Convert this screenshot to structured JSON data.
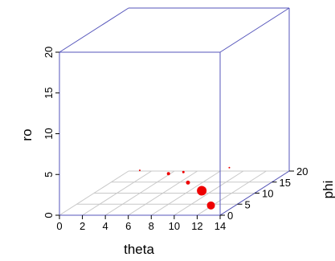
{
  "chart_data": {
    "type": "scatter",
    "subtype": "3d",
    "xlabel": "theta",
    "ylabel": "phi",
    "zlabel": "ro",
    "xlim": [
      0,
      14
    ],
    "ylim": [
      0,
      20
    ],
    "zlim": [
      0,
      20
    ],
    "x_ticks": [
      "0",
      "2",
      "4",
      "6",
      "8",
      "10",
      "12",
      "14"
    ],
    "y_ticks": [
      "0",
      "5",
      "10",
      "15",
      "20"
    ],
    "z_ticks": [
      "0",
      "5",
      "10",
      "15",
      "20"
    ],
    "grid": true,
    "point_color": "#ee0000",
    "points": [
      {
        "x": 7.0,
        "y": 0,
        "z": 5.5,
        "size": 1
      },
      {
        "x": 9.5,
        "y": 0,
        "z": 5.1,
        "size": 2
      },
      {
        "x": 10.8,
        "y": 0,
        "z": 5.3,
        "size": 1.5
      },
      {
        "x": 11.2,
        "y": 0,
        "z": 4.0,
        "size": 2.5
      },
      {
        "x": 12.4,
        "y": 0,
        "z": 3.0,
        "size": 6
      },
      {
        "x": 13.2,
        "y": 0,
        "z": 1.2,
        "size": 5
      },
      {
        "x": 14.2,
        "y": 2,
        "z": 5.3,
        "size": 1
      }
    ]
  },
  "colors": {
    "box": "#5555bb",
    "grid": "#c8c8c8"
  }
}
